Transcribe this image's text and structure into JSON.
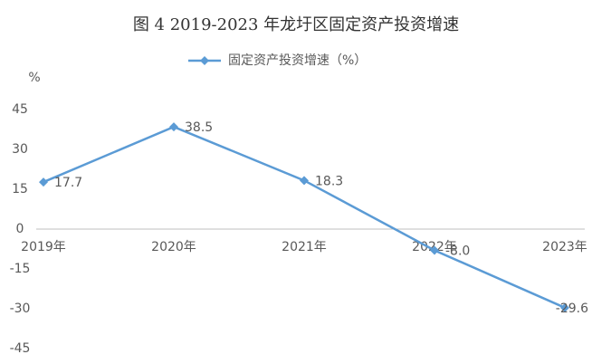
{
  "chart_data": {
    "type": "line",
    "title": "图 4 2019-2023 年龙圩区固定资产投资增速",
    "y_label": "%",
    "categories": [
      "2019年",
      "2020年",
      "2021年",
      "2022年",
      "2023年"
    ],
    "series": [
      {
        "name": "固定资产投资增速（%）",
        "color": "#5b9bd5",
        "values": [
          17.7,
          38.5,
          18.3,
          -8.0,
          -29.6
        ],
        "value_labels": [
          "17.7",
          "38.5",
          "18.3",
          "-8.0",
          "-29.6"
        ]
      }
    ],
    "ylim": [
      -45,
      45
    ],
    "yticks": [
      -45,
      -30,
      -15,
      0,
      15,
      30,
      45
    ],
    "grid": false,
    "legend": "top"
  }
}
